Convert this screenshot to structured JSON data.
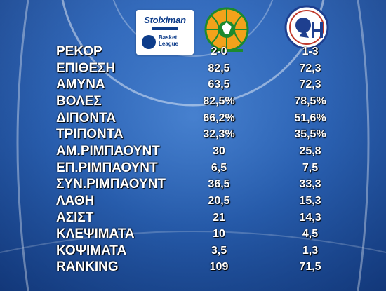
{
  "sponsor": {
    "brand": "Stoiximan",
    "league_line1": "Basket",
    "league_line2": "League"
  },
  "teams": {
    "home": {
      "logo": "panathinaikos-logo",
      "color": "#1c8a2e"
    },
    "away": {
      "logo": "kolossos-logo",
      "color": "#1e3f8f"
    }
  },
  "rows": [
    {
      "label": "ΡΕΚΟΡ",
      "home": "2-0",
      "away": "1-3"
    },
    {
      "label": "ΕΠΙΘΕΣΗ",
      "home": "82,5",
      "away": "72,3"
    },
    {
      "label": "ΑΜΥΝΑ",
      "home": "63,5",
      "away": "72,3"
    },
    {
      "label": "ΒΟΛΕΣ",
      "home": "82,5%",
      "away": "78,5%"
    },
    {
      "label": "ΔΙΠΟΝΤΑ",
      "home": "66,2%",
      "away": "51,6%"
    },
    {
      "label": "ΤΡΙΠΟΝΤΑ",
      "home": "32,3%",
      "away": "35,5%"
    },
    {
      "label": "ΑΜ.ΡΙΜΠΑΟΥΝΤ",
      "home": "30",
      "away": "25,8"
    },
    {
      "label": "ΕΠ.ΡΙΜΠΑΟΥΝΤ",
      "home": "6,5",
      "away": "7,5"
    },
    {
      "label": "ΣΥΝ.ΡΙΜΠΑΟΥΝΤ",
      "home": "36,5",
      "away": "33,3"
    },
    {
      "label": "ΛΑΘΗ",
      "home": "20,5",
      "away": "15,3"
    },
    {
      "label": "ΑΣΙΣΤ",
      "home": "21",
      "away": "14,3"
    },
    {
      "label": "ΚΛΕΨΙΜΑΤΑ",
      "home": "10",
      "away": "4,5"
    },
    {
      "label": "ΚΟΨΙΜΑΤΑ",
      "home": "3,5",
      "away": "1,3"
    },
    {
      "label": "RANKING",
      "home": "109",
      "away": "71,5"
    }
  ]
}
